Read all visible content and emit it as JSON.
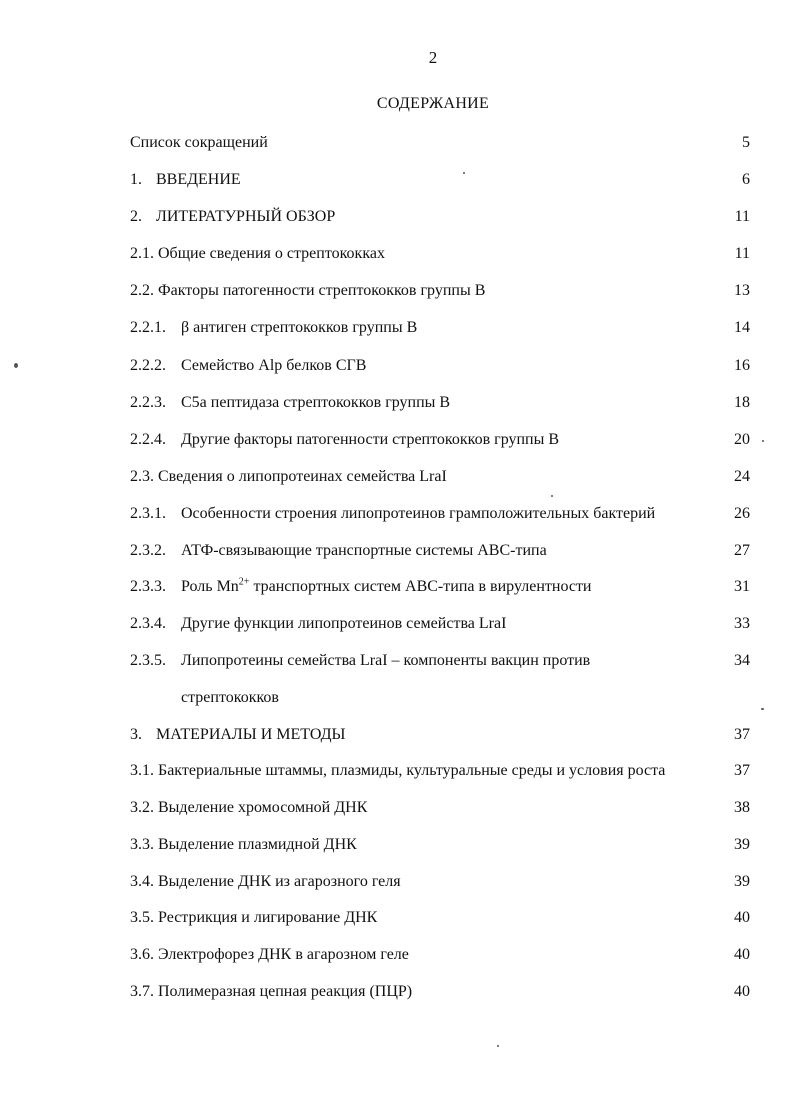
{
  "page_number": "2",
  "title": "СОДЕРЖАНИЕ",
  "entries": [
    {
      "num": "",
      "text": "Список сокращений",
      "page": "5"
    },
    {
      "num": "1.",
      "text": "ВВЕДЕНИЕ",
      "page": "6"
    },
    {
      "num": "2.",
      "text": "ЛИТЕРАТУРНЫЙ ОБЗОР",
      "page": "11"
    },
    {
      "num": "",
      "text": "2.1. Общие сведения о стрептококках",
      "page": "11"
    },
    {
      "num": "",
      "text": "2.2. Факторы патогенности стрептококков группы В",
      "page": "13"
    },
    {
      "num": "2.2.1.",
      "text": "β антиген стрептококков группы В",
      "page": "14"
    },
    {
      "num": "2.2.2.",
      "text": "Семейство Alp белков СГВ",
      "page": "16"
    },
    {
      "num": "2.2.3.",
      "text": "С5а пептидаза стрептококков группы В",
      "page": "18"
    },
    {
      "num": "2.2.4.",
      "text": "Другие факторы патогенности стрептококков группы В",
      "page": "20"
    },
    {
      "num": "",
      "text": "2.3. Сведения о липопротеинах семейства LraI",
      "page": "24"
    },
    {
      "num": "2.3.1.",
      "text": "Особенности строения липопротеинов грамположительных бактерий",
      "page": "26"
    },
    {
      "num": "2.3.2.",
      "text": "АТФ-связывающие транспортные системы АВС-типа",
      "page": "27"
    },
    {
      "num": "2.3.3.",
      "text_pre": "Роль Mn",
      "text_sup": "2+",
      "text_post": " транспортных систем АВС-типа в вирулентности",
      "page": "31"
    },
    {
      "num": "2.3.4.",
      "text": "Другие функции липопротеинов семейства LraI",
      "page": "33"
    },
    {
      "num": "2.3.5.",
      "text": "Липопротеины семейства LraI – компоненты вакцин против",
      "page": "34"
    },
    {
      "num": "",
      "text": "стрептококков",
      "page": ""
    },
    {
      "num": "3.",
      "text": "МАТЕРИАЛЫ И МЕТОДЫ",
      "page": "37"
    },
    {
      "num": "",
      "text": "3.1. Бактериальные штаммы, плазмиды, культуральные среды и условия роста",
      "page": "37"
    },
    {
      "num": "",
      "text": "3.2. Выделение хромосомной ДНК",
      "page": "38"
    },
    {
      "num": "",
      "text": "3.3. Выделение плазмидной ДНК",
      "page": "39"
    },
    {
      "num": "",
      "text": "3.4. Выделение ДНК из агарозного геля",
      "page": "39"
    },
    {
      "num": "",
      "text": "3.5. Рестрикция и лигирование ДНК",
      "page": "40"
    },
    {
      "num": "",
      "text": "3.6. Электрофорез ДНК в агарозном геле",
      "page": "40"
    },
    {
      "num": "",
      "text": "3.7. Полимеразная цепная реакция (ПЦР)",
      "page": "40"
    }
  ]
}
